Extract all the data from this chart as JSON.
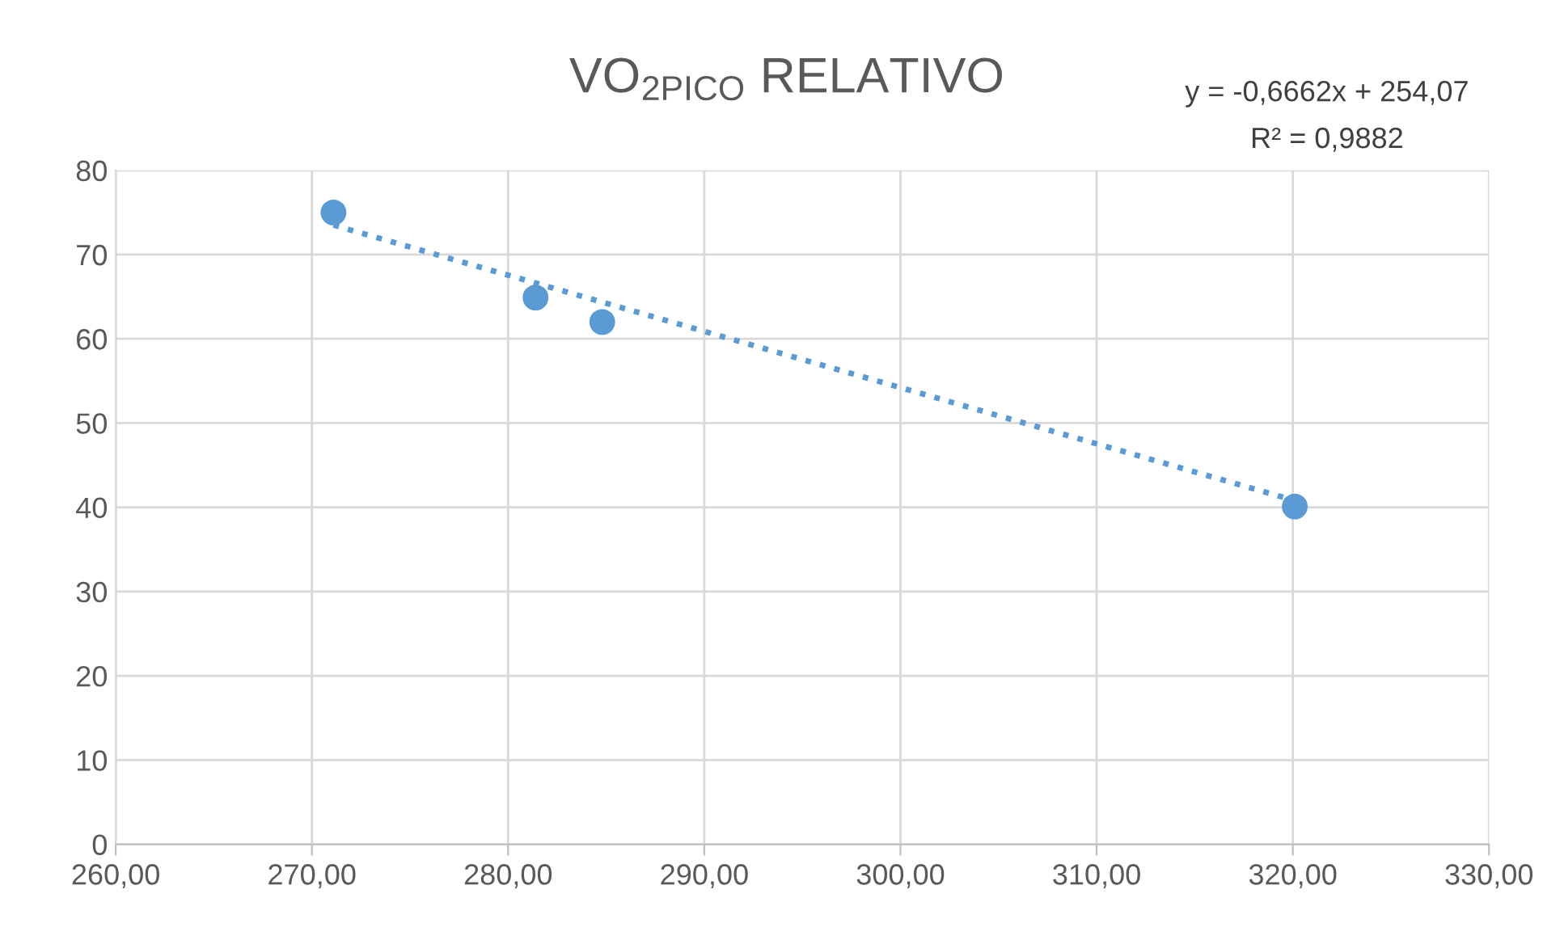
{
  "chart_data": {
    "type": "scatter",
    "title": "VO$_{2PICO}$ RELATIVO",
    "series": [
      {
        "color": "#5b9bd5",
        "marker": "circle",
        "x": [
          271.1,
          281.4,
          284.8,
          320.1
        ],
        "values": [
          75.0,
          64.9,
          62.0,
          40.1
        ]
      },
      {
        "type": "line",
        "color": "#5b9bd5",
        "line_style": "dotted",
        "marker": "none",
        "x": [
          271.1,
          320.1
        ],
        "values": [
          73.5,
          40.8
        ]
      }
    ],
    "xlim": [
      260,
      330
    ],
    "xticks": [
      {
        "value": 260,
        "label": "260,00"
      },
      {
        "value": 270,
        "label": "270,00"
      },
      {
        "value": 280,
        "label": "280,00"
      },
      {
        "value": 290,
        "label": "290,00"
      },
      {
        "value": 300,
        "label": "300,00"
      },
      {
        "value": 310,
        "label": "310,00"
      },
      {
        "value": 320,
        "label": "320,00"
      },
      {
        "value": 330,
        "label": "330,00"
      }
    ],
    "ylim": [
      0,
      80
    ],
    "yticks": [
      0,
      10,
      20,
      30,
      40,
      50,
      60,
      70,
      80
    ],
    "grid": true,
    "annotations": [
      "y = -0,6662x + 254,07",
      "R² = 0,9882"
    ]
  }
}
